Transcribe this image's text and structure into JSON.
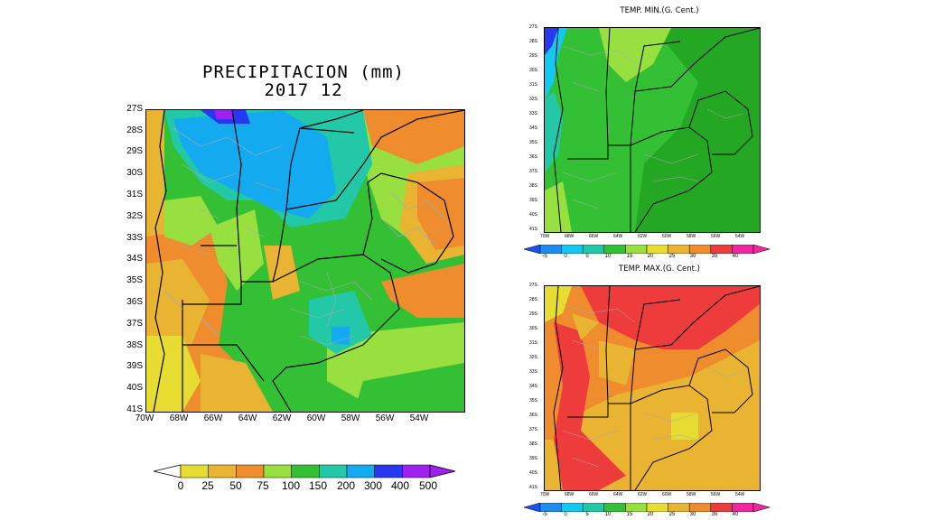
{
  "precip": {
    "title_line1": "PRECIPITACION (mm)",
    "title_line2": "2017   12",
    "lat_labels": [
      "27S",
      "28S",
      "29S",
      "30S",
      "31S",
      "32S",
      "33S",
      "34S",
      "35S",
      "36S",
      "37S",
      "38S",
      "39S",
      "40S",
      "41S"
    ],
    "lon_labels": [
      "70W",
      "68W",
      "66W",
      "64W",
      "62W",
      "60W",
      "58W",
      "56W",
      "54W"
    ],
    "colorbar": {
      "labels": [
        "0",
        "25",
        "50",
        "75",
        "100",
        "150",
        "200",
        "300",
        "400",
        "500"
      ],
      "colors": [
        "#e6dc32",
        "#e8b432",
        "#ee8c2e",
        "#98e040",
        "#34c034",
        "#22c8a8",
        "#14aaf0",
        "#2838f0",
        "#a020f0"
      ]
    }
  },
  "tmin": {
    "title": "TEMP. MIN.(G. Cent.)",
    "lat_labels": [
      "27S",
      "28S",
      "29S",
      "30S",
      "31S",
      "32S",
      "33S",
      "34S",
      "35S",
      "36S",
      "37S",
      "38S",
      "39S",
      "40S",
      "41S"
    ],
    "lon_labels": [
      "70W",
      "68W",
      "66W",
      "64W",
      "62W",
      "60W",
      "58W",
      "56W",
      "54W"
    ],
    "colorbar": {
      "labels": [
        "-5",
        "0",
        "5",
        "10",
        "15",
        "20",
        "25",
        "30",
        "35",
        "40"
      ],
      "colors": [
        "#1e8cf0",
        "#14c8f0",
        "#22c8a8",
        "#34c034",
        "#98e040",
        "#e6dc32",
        "#e8b432",
        "#ee8c2e",
        "#ee3c3c",
        "#f028a0"
      ]
    }
  },
  "tmax": {
    "title": "TEMP. MAX.(G. Cent.)",
    "lat_labels": [
      "27S",
      "28S",
      "29S",
      "30S",
      "31S",
      "32S",
      "33S",
      "34S",
      "35S",
      "36S",
      "37S",
      "38S",
      "39S",
      "40S",
      "41S"
    ],
    "lon_labels": [
      "70W",
      "68W",
      "66W",
      "64W",
      "62W",
      "60W",
      "58W",
      "56W",
      "54W"
    ],
    "colorbar": {
      "labels": [
        "-5",
        "0",
        "5",
        "10",
        "15",
        "20",
        "25",
        "30",
        "35",
        "40"
      ],
      "colors": [
        "#1e8cf0",
        "#14c8f0",
        "#22c8a8",
        "#34c034",
        "#98e040",
        "#e6dc32",
        "#e8b432",
        "#ee8c2e",
        "#ee3c3c",
        "#f028a0"
      ]
    }
  }
}
